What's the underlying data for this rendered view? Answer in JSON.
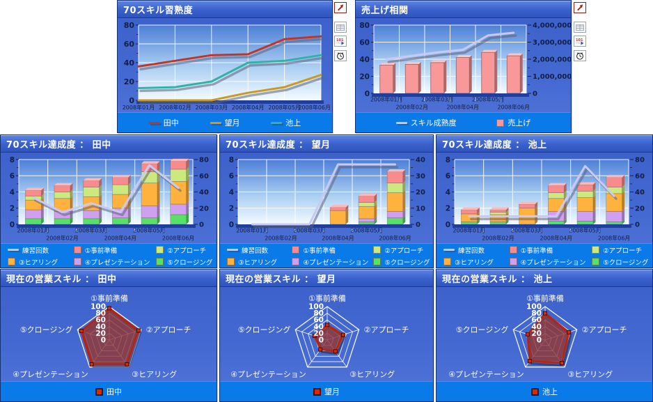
{
  "colors": {
    "page_bg": "#ffffff",
    "panel_bg": "#3c5fc8",
    "titlebar": "#3a60cc",
    "legend_bg": "#0a7ae8",
    "plot_gradient_top": "#4d7fd6",
    "plot_gradient_bottom": "#f4fbff",
    "gridline": "#ffffff",
    "axis_text": "#131f45",
    "floor": "#203f9c",
    "line_shadow": "rgba(95,98,120,0.55)"
  },
  "toolbar": {
    "icons": [
      {
        "name": "expand-icon"
      },
      {
        "name": "table-view-icon"
      },
      {
        "name": "numeric-data-icon"
      },
      {
        "name": "clock-icon"
      }
    ]
  },
  "chart_data": [
    {
      "id": "skill_proficiency",
      "type": "line",
      "title": "70スキル習熟度",
      "categories": [
        "2008年01月",
        "2008年02月",
        "2008年03月",
        "2008年04月",
        "2008年05月",
        "2008年06月"
      ],
      "series": [
        {
          "name": "田中",
          "color": "#bf3626",
          "values": [
            36,
            42,
            48,
            49,
            65,
            68
          ]
        },
        {
          "name": "望月",
          "color": "#c99a1e",
          "values": [
            0,
            0,
            0,
            8,
            14,
            27
          ]
        },
        {
          "name": "池上",
          "color": "#2fb3a6",
          "values": [
            13,
            14,
            20,
            40,
            42,
            48
          ]
        }
      ],
      "left_axis": {
        "lim": [
          0,
          80
        ],
        "tick": 20
      },
      "x_labels": "single",
      "legend": [
        {
          "marker": "line",
          "color": "#bf3626",
          "label": "田中"
        },
        {
          "marker": "line",
          "color": "#c99a1e",
          "label": "望月"
        },
        {
          "marker": "line",
          "color": "#2fb3a6",
          "label": "池上"
        }
      ]
    },
    {
      "id": "sales_correlation",
      "type": "combo",
      "title": "売上げ相関",
      "categories": [
        "2008年01月",
        "2008年02月",
        "2008年03月",
        "2008年04月",
        "2008年05月",
        "2008年06月"
      ],
      "bars": {
        "name": "売上げ",
        "color": "#f89898",
        "axis": "right",
        "values": [
          1650000,
          1700000,
          1800000,
          2100000,
          2400000,
          2200000
        ]
      },
      "line": {
        "name": "スキル成熟度",
        "color": "#c9c9f5",
        "axis": "left",
        "values": [
          40,
          44,
          48,
          51,
          68,
          71
        ]
      },
      "left_axis": {
        "lim": [
          0,
          80
        ],
        "tick": 20
      },
      "right_axis": {
        "lim": [
          0,
          4000000
        ],
        "tick": 1000000,
        "format": "comma"
      },
      "x_labels": "staggered",
      "legend": [
        {
          "marker": "line",
          "color": "#c9c9f5",
          "label": "スキル成熟度"
        },
        {
          "marker": "square",
          "color": "#f89898",
          "label": "売上げ"
        }
      ]
    },
    {
      "id": "achievement_tanaka",
      "type": "stacked-combo",
      "title": "70スキル達成度 ： 田中",
      "categories": [
        "2008年01月",
        "2008年02月",
        "2008年03月",
        "2008年04月",
        "2008年05月",
        "2008年06月"
      ],
      "stack": [
        {
          "name": "⑤クロージング",
          "color": "#59e066",
          "values": [
            0.7,
            0.7,
            0.7,
            0.8,
            0.8,
            1.2
          ]
        },
        {
          "name": "④プレゼンテーション",
          "color": "#cfa0f0",
          "values": [
            1.1,
            0.9,
            1.0,
            1.2,
            1.5,
            1.3
          ]
        },
        {
          "name": "③ヒアリング",
          "color": "#ffb23e",
          "values": [
            1.2,
            1.6,
            1.7,
            1.7,
            2.8,
            2.8
          ]
        },
        {
          "name": "②アプローチ",
          "color": "#cbe97e",
          "values": [
            0.5,
            0.8,
            1.2,
            1.2,
            1.4,
            1.5
          ]
        },
        {
          "name": "①事前準備",
          "color": "#f88c8c",
          "values": [
            0.7,
            0.8,
            0.8,
            0.9,
            1.0,
            1.0
          ]
        }
      ],
      "line": {
        "name": "練習回数",
        "color": "#c9c9f5",
        "axis": "right",
        "values": [
          33,
          15,
          26,
          15,
          73,
          45
        ]
      },
      "left_axis": {
        "lim": [
          0,
          8
        ],
        "tick": 2
      },
      "right_axis": {
        "lim": [
          0,
          80
        ],
        "tick": 20
      },
      "x_labels": "staggered",
      "legend": [
        {
          "marker": "line",
          "color": "#c9c9f5",
          "label": "練習回数"
        },
        {
          "marker": "square",
          "color": "#f88c8c",
          "label": "①事前準備"
        },
        {
          "marker": "square",
          "color": "#cbe97e",
          "label": "②アプローチ"
        },
        {
          "marker": "square",
          "color": "#ffb23e",
          "label": "③ヒアリング"
        },
        {
          "marker": "square",
          "color": "#cfa0f0",
          "label": "④プレゼンテーション"
        },
        {
          "marker": "square",
          "color": "#59e066",
          "label": "⑤クロージング"
        }
      ]
    },
    {
      "id": "achievement_mochizuki",
      "type": "stacked-combo",
      "title": "70スキル達成度 ： 望月",
      "categories": [
        "2008年01月",
        "2008年02月",
        "2008年03月",
        "2008年04月",
        "2008年05月",
        "2008年06月"
      ],
      "stack": [
        {
          "name": "⑤クロージング",
          "color": "#59e066",
          "values": [
            0,
            0,
            0,
            0,
            0.3,
            0.8
          ]
        },
        {
          "name": "④プレゼンテーション",
          "color": "#cfa0f0",
          "values": [
            0,
            0,
            0,
            0,
            0.4,
            0.8
          ]
        },
        {
          "name": "③ヒアリング",
          "color": "#ffb23e",
          "values": [
            0,
            0,
            0,
            1.7,
            1.5,
            2.3
          ]
        },
        {
          "name": "②アプローチ",
          "color": "#cbe97e",
          "values": [
            0,
            0,
            0,
            0,
            0.5,
            1.2
          ]
        },
        {
          "name": "①事前準備",
          "color": "#f88c8c",
          "values": [
            0,
            0,
            0,
            0.4,
            0.8,
            1.4
          ]
        }
      ],
      "line": {
        "name": "練習回数",
        "color": "#c9c9f5",
        "axis": "right",
        "values": [
          0,
          0,
          0,
          37,
          37,
          37
        ]
      },
      "left_axis": {
        "lim": [
          0,
          8
        ],
        "tick": 2
      },
      "right_axis": {
        "lim": [
          0,
          40
        ],
        "tick": 10
      },
      "x_labels": "staggered",
      "legend": [
        {
          "marker": "line",
          "color": "#c9c9f5",
          "label": "練習回数"
        },
        {
          "marker": "square",
          "color": "#f88c8c",
          "label": "①事前準備"
        },
        {
          "marker": "square",
          "color": "#cbe97e",
          "label": "②アプローチ"
        },
        {
          "marker": "square",
          "color": "#ffb23e",
          "label": "③ヒアリング"
        },
        {
          "marker": "square",
          "color": "#cfa0f0",
          "label": "④プレゼンテーション"
        },
        {
          "marker": "square",
          "color": "#59e066",
          "label": "⑤クロージング"
        }
      ]
    },
    {
      "id": "achievement_ikegami",
      "type": "stacked-combo",
      "title": "70スキル達成度 ： 池上",
      "categories": [
        "2008年01月",
        "2008年02月",
        "2008年03月",
        "2008年04月",
        "2008年05月",
        "2008年06月"
      ],
      "stack": [
        {
          "name": "⑤クロージング",
          "color": "#59e066",
          "values": [
            0.3,
            0.3,
            0,
            0.4,
            0.4,
            0.3
          ]
        },
        {
          "name": "④プレゼンテーション",
          "color": "#cfa0f0",
          "values": [
            0,
            0,
            0,
            1.2,
            1.2,
            1.3
          ]
        },
        {
          "name": "③ヒアリング",
          "color": "#ffb23e",
          "values": [
            1.0,
            0.9,
            2.0,
            1.6,
            1.7,
            2.2
          ]
        },
        {
          "name": "②アプローチ",
          "color": "#cbe97e",
          "values": [
            0,
            0.3,
            0,
            0.7,
            0.8,
            0.8
          ]
        },
        {
          "name": "①事前準備",
          "color": "#f88c8c",
          "values": [
            0.5,
            0.3,
            0.5,
            0.9,
            0.8,
            1.2
          ]
        }
      ],
      "line": {
        "name": "練習回数",
        "color": "#c9c9f5",
        "axis": "right",
        "values": [
          10,
          10,
          10,
          10,
          72,
          35
        ]
      },
      "left_axis": {
        "lim": [
          0,
          8
        ],
        "tick": 2
      },
      "right_axis": {
        "lim": [
          0,
          80
        ],
        "tick": 20
      },
      "x_labels": "staggered",
      "legend": [
        {
          "marker": "line",
          "color": "#c9c9f5",
          "label": "練習回数"
        },
        {
          "marker": "square",
          "color": "#f88c8c",
          "label": "①事前準備"
        },
        {
          "marker": "square",
          "color": "#cbe97e",
          "label": "②アプローチ"
        },
        {
          "marker": "square",
          "color": "#ffb23e",
          "label": "③ヒアリング"
        },
        {
          "marker": "square",
          "color": "#cfa0f0",
          "label": "④プレゼンテーション"
        },
        {
          "marker": "square",
          "color": "#59e066",
          "label": "⑤クロージング"
        }
      ]
    },
    {
      "id": "radar_tanaka",
      "type": "radar",
      "title": "現在の営業スキル ： 田中",
      "axes": [
        "①事前準備",
        "②アプローチ",
        "③ヒアリング",
        "④プレゼンテーション",
        "⑤クロージング"
      ],
      "values": [
        95,
        92,
        90,
        90,
        88
      ],
      "rlim": [
        0,
        100
      ],
      "rtick": 20,
      "fill": "rgba(145,55,52,0.82)",
      "stroke": "#c22000",
      "legend": [
        {
          "marker": "square-red",
          "color": "#e02800",
          "label": "田中"
        }
      ]
    },
    {
      "id": "radar_mochizuki",
      "type": "radar",
      "title": "現在の営業スキル ： 望月",
      "axes": [
        "①事前準備",
        "②アプローチ",
        "③ヒアリング",
        "④プレゼンテーション",
        "⑤クロージング"
      ],
      "values": [
        45,
        50,
        42,
        35,
        40
      ],
      "rlim": [
        0,
        100
      ],
      "rtick": 20,
      "fill": "rgba(145,55,52,0.82)",
      "stroke": "#c22000",
      "legend": [
        {
          "marker": "square-red",
          "color": "#e02800",
          "label": "望月"
        }
      ]
    },
    {
      "id": "radar_ikegami",
      "type": "radar",
      "title": "現在の営業スキル ： 池上",
      "axes": [
        "①事前準備",
        "②アプローチ",
        "③ヒアリング",
        "④プレゼンテーション",
        "⑤クロージング"
      ],
      "values": [
        80,
        75,
        85,
        78,
        55
      ],
      "rlim": [
        0,
        100
      ],
      "rtick": 20,
      "fill": "rgba(145,55,52,0.82)",
      "stroke": "#c22000",
      "legend": [
        {
          "marker": "square-red",
          "color": "#e02800",
          "label": "池上"
        }
      ]
    }
  ]
}
